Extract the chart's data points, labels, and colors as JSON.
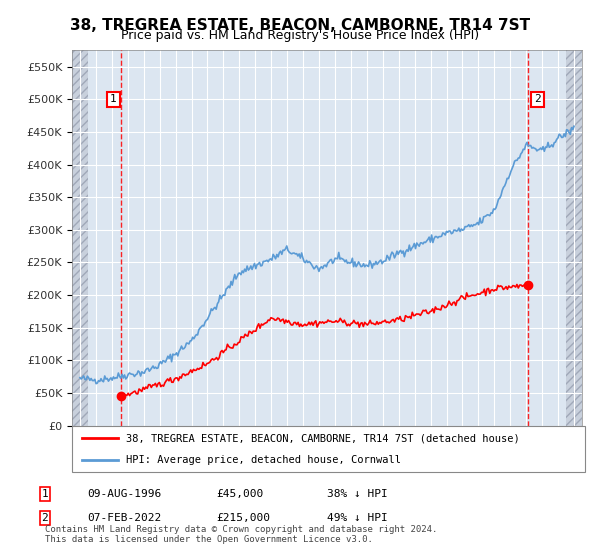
{
  "title": "38, TREGREA ESTATE, BEACON, CAMBORNE, TR14 7ST",
  "subtitle": "Price paid vs. HM Land Registry's House Price Index (HPI)",
  "ylim": [
    0,
    575000
  ],
  "xlim_start": 1993.5,
  "xlim_end": 2025.5,
  "hpi_color": "#5b9bd5",
  "price_color": "#ff0000",
  "transaction1": {
    "date_x": 1996.6,
    "price": 45000,
    "label": "1",
    "date_str": "09-AUG-1996",
    "price_str": "£45,000",
    "hpi_str": "38% ↓ HPI"
  },
  "transaction2": {
    "date_x": 2022.1,
    "price": 215000,
    "label": "2",
    "date_str": "07-FEB-2022",
    "price_str": "£215,000",
    "hpi_str": "49% ↓ HPI"
  },
  "legend_line1": "38, TREGREA ESTATE, BEACON, CAMBORNE, TR14 7ST (detached house)",
  "legend_line2": "HPI: Average price, detached house, Cornwall",
  "footer": "Contains HM Land Registry data © Crown copyright and database right 2024.\nThis data is licensed under the Open Government Licence v3.0.",
  "background_plot": "#dce6f1",
  "grid_color": "#ffffff",
  "hatch_left_end": 1994.5,
  "hatch_right_start": 2024.5
}
